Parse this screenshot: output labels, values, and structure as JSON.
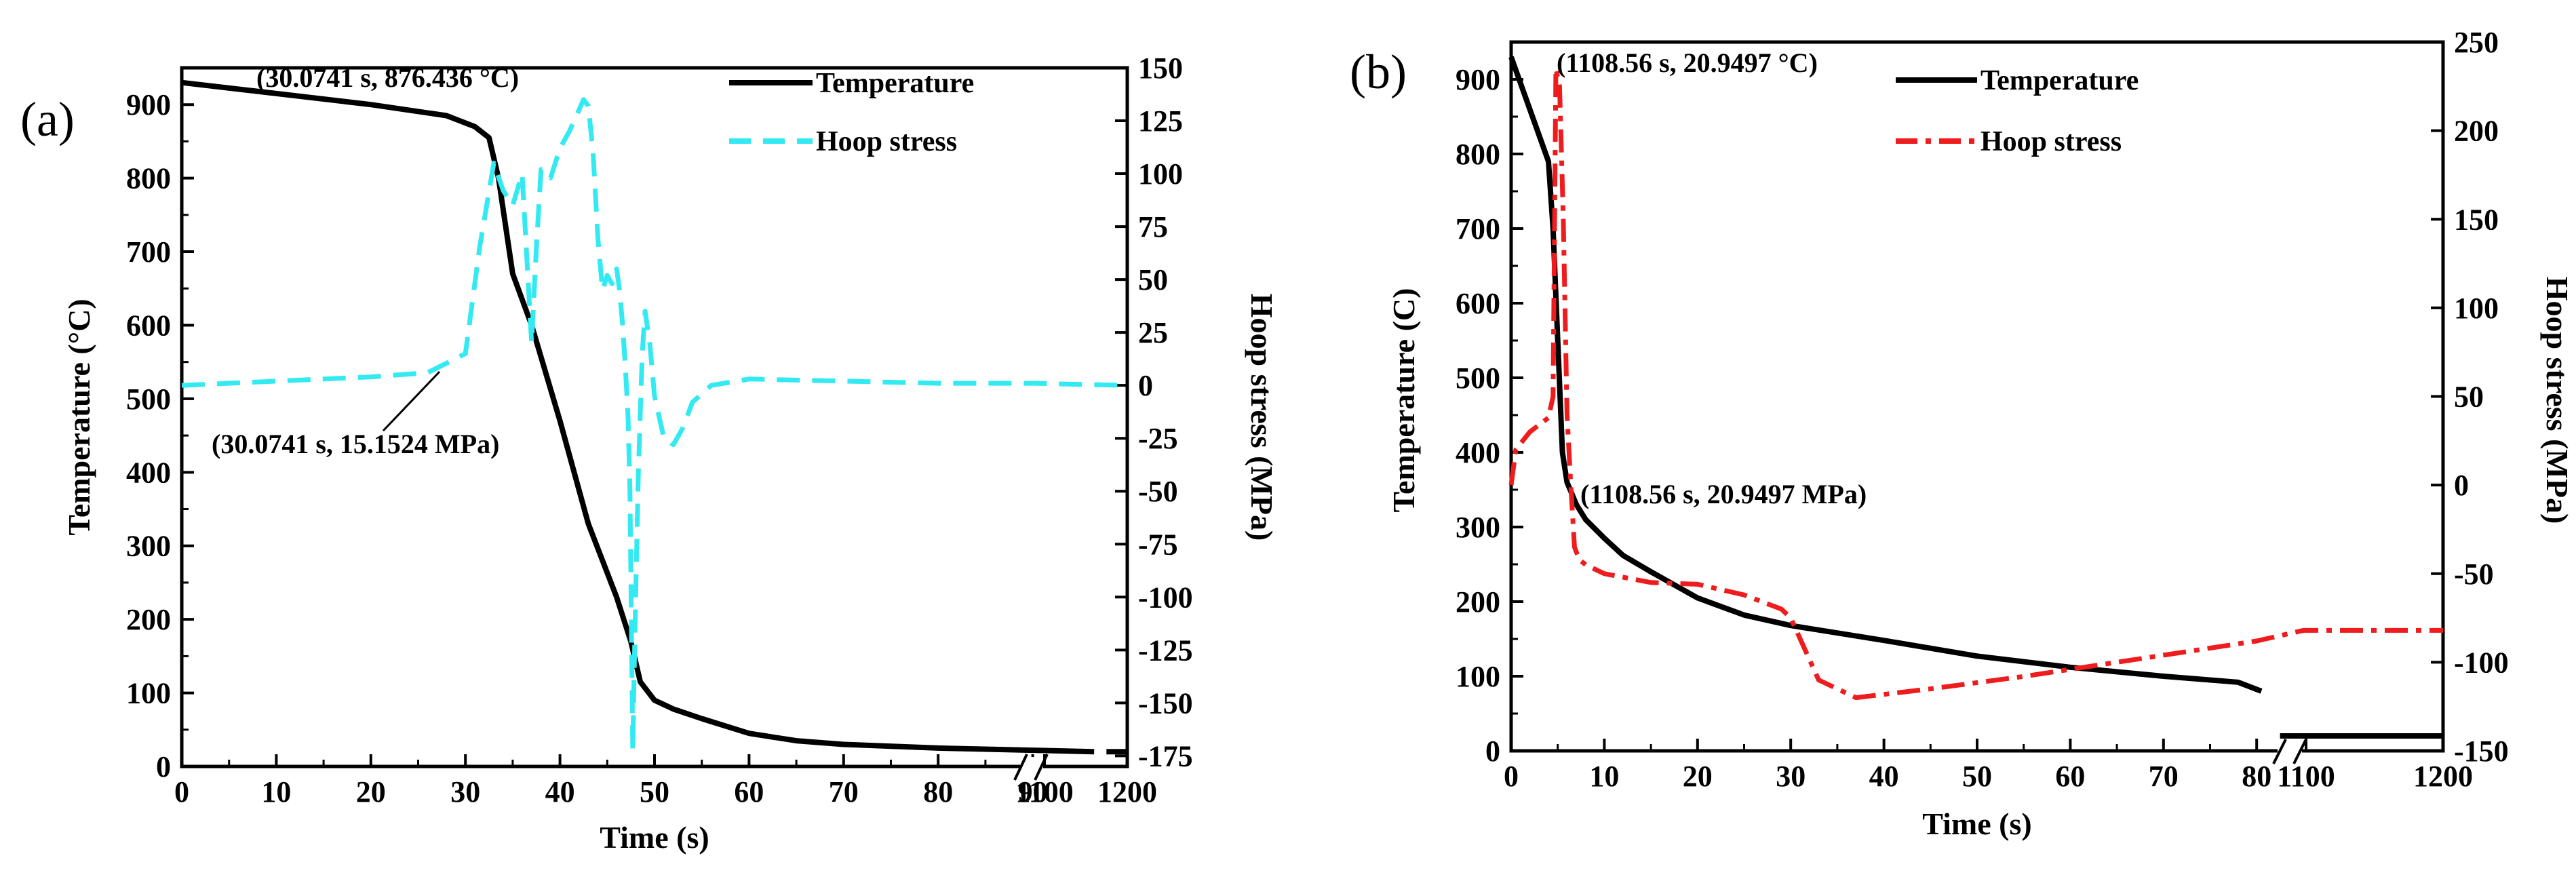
{
  "chart_data": [
    {
      "type": "line",
      "panel_label": "(a)",
      "xlabel": "Time (s)",
      "ylabel": "Temperature (°C)",
      "y2label": "Hoop stress (MPa)",
      "xlim": [
        0,
        100
      ],
      "ylim": [
        0,
        950
      ],
      "y2lim": [
        -180,
        150
      ],
      "x_tick_labels": [
        "0",
        "10",
        "20",
        "30",
        "40",
        "50",
        "60",
        "70",
        "80",
        "90",
        "1100",
        "1200"
      ],
      "y_ticks": [
        0,
        100,
        200,
        300,
        400,
        500,
        600,
        700,
        800,
        900
      ],
      "y2_ticks": [
        -175,
        -150,
        -125,
        -100,
        -75,
        -50,
        -25,
        0,
        25,
        50,
        75,
        100,
        125,
        150
      ],
      "legend": [
        "Temperature",
        "Hoop stress"
      ],
      "legend_position": "top-right",
      "annotations": [
        "(30.0741 s, 876.436 °C)",
        "(30.0741 s, 15.1524 MPa)"
      ],
      "series": [
        {
          "name": "Temperature",
          "axis": "left",
          "color": "#000000",
          "style": "solid",
          "x": [
            0,
            10,
            20,
            28,
            31,
            32.5,
            33.5,
            35,
            37,
            40,
            43,
            46,
            47.5,
            48.5,
            50,
            52,
            55,
            60,
            65,
            70,
            80,
            90,
            96.5
          ],
          "y": [
            930,
            915,
            900,
            885,
            870,
            855,
            800,
            670,
            600,
            470,
            330,
            230,
            170,
            115,
            90,
            78,
            65,
            45,
            35,
            30,
            25,
            22,
            20
          ],
          "break_x": [
            97.8,
            100
          ],
          "break_y": [
            20,
            20
          ]
        },
        {
          "name": "Hoop stress",
          "axis": "right",
          "color": "#33eaf2",
          "style": "dashed",
          "x": [
            0,
            10,
            20,
            26,
            30,
            31.5,
            33,
            34,
            35,
            36,
            36.5,
            37,
            37.5,
            38,
            39,
            40,
            41,
            42,
            42.5,
            43,
            43.5,
            44,
            44.5,
            45,
            45.5,
            46,
            46.3,
            46.6,
            46.9,
            47.2,
            47.4,
            47.7,
            48,
            48.3,
            48.7,
            49,
            49.5,
            50,
            51,
            52,
            53,
            54,
            56,
            60,
            70,
            80,
            90,
            100
          ],
          "y": [
            0,
            2,
            4,
            6,
            15,
            65,
            105,
            92,
            85,
            100,
            60,
            20,
            65,
            102,
            98,
            112,
            120,
            130,
            135,
            132,
            110,
            70,
            45,
            52,
            48,
            55,
            45,
            30,
            10,
            -15,
            -50,
            -172,
            -100,
            -40,
            15,
            35,
            20,
            -5,
            -25,
            -28,
            -20,
            -8,
            0,
            3,
            2,
            1,
            1,
            0
          ],
          "break_x": [],
          "break_y": []
        }
      ]
    },
    {
      "type": "line",
      "panel_label": "(b)",
      "xlabel": "Time (s)",
      "ylabel": "Temperature (C)",
      "y2label": "Hoop stress (MPa)",
      "xlim": [
        0,
        100
      ],
      "ylim": [
        0,
        950
      ],
      "y2lim": [
        -150,
        250
      ],
      "x_tick_labels": [
        "0",
        "10",
        "20",
        "30",
        "40",
        "50",
        "60",
        "70",
        "80",
        "1100",
        "1200"
      ],
      "y_ticks": [
        0,
        100,
        200,
        300,
        400,
        500,
        600,
        700,
        800,
        900
      ],
      "y2_ticks": [
        -150,
        -100,
        -50,
        0,
        50,
        100,
        150,
        200,
        250
      ],
      "legend": [
        "Temperature",
        "Hoop stress"
      ],
      "legend_position": "top-right",
      "annotations": [
        "(1108.56 s, 20.9497 °C)",
        "(1108.56 s, 20.9497 MPa)"
      ],
      "series": [
        {
          "name": "Temperature",
          "axis": "left",
          "color": "#000000",
          "style": "solid",
          "x": [
            0,
            2,
            4,
            4.5,
            5,
            5.5,
            6,
            7,
            8,
            10,
            12,
            15,
            20,
            25,
            30,
            40,
            50,
            60,
            70,
            78,
            80.5
          ],
          "y": [
            930,
            860,
            790,
            700,
            550,
            400,
            360,
            330,
            310,
            285,
            262,
            240,
            205,
            182,
            168,
            148,
            127,
            112,
            100,
            92,
            80
          ],
          "break_x": [
            82.5,
            100
          ],
          "break_y": [
            20,
            20
          ]
        },
        {
          "name": "Hoop stress",
          "axis": "right",
          "color": "#ee1c1c",
          "style": "dash-dot",
          "x": [
            0,
            0.5,
            2,
            4,
            4.5,
            4.8,
            5.2,
            5.6,
            6,
            6.4,
            6.8,
            7.3,
            8,
            10,
            15,
            20,
            25,
            29,
            30,
            33,
            37,
            45,
            55,
            65,
            75,
            80,
            85,
            100
          ],
          "y": [
            0,
            20,
            30,
            38,
            50,
            235,
            225,
            150,
            40,
            0,
            -35,
            -42,
            -45,
            -50,
            -55,
            -56,
            -62,
            -70,
            -75,
            -110,
            -120,
            -115,
            -108,
            -100,
            -92,
            -88,
            -82,
            -82
          ],
          "break_x": [],
          "break_y": []
        }
      ]
    }
  ]
}
